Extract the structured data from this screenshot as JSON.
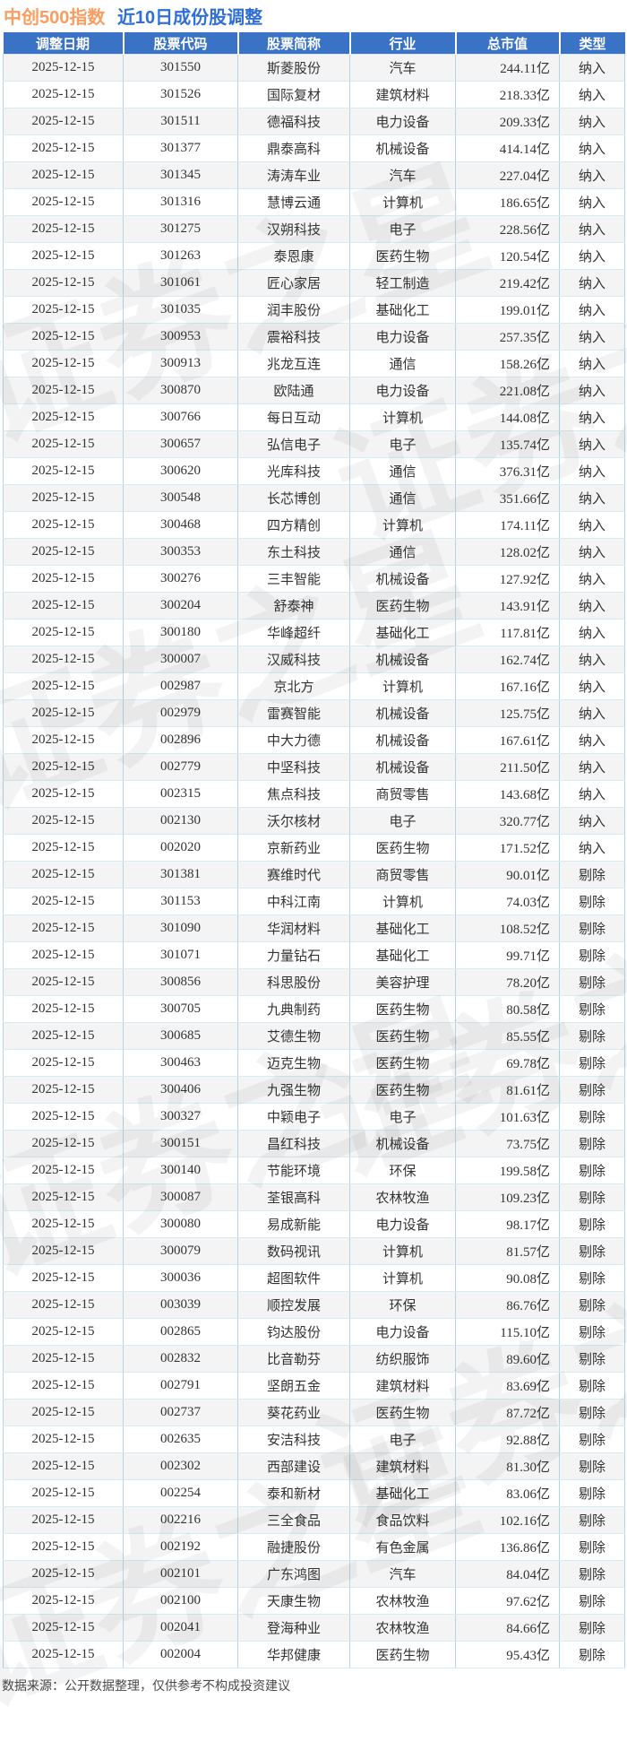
{
  "page": {
    "title_main": "中创500指数",
    "title_sub": "近10日成份股调整",
    "footer": "数据来源：公开数据整理，仅供参考不构成投资建议",
    "watermark": "证券之星"
  },
  "colors": {
    "title_main": "#f99d61",
    "title_sub": "#2f6fd6",
    "header_bg": "#3a72c6",
    "header_text": "#ffffff",
    "body_text": "#333333",
    "row_stripe": "#f4f4f4",
    "border_vertical": "#b0d4e8",
    "border_horizontal": "#d9eaf5",
    "footer_text": "#4a4a4a"
  },
  "table": {
    "columns": [
      "调整日期",
      "股票代码",
      "股票简称",
      "行业",
      "总市值",
      "类型"
    ],
    "rows": [
      [
        "2025-12-15",
        "301550",
        "斯菱股份",
        "汽车",
        "244.11亿",
        "纳入"
      ],
      [
        "2025-12-15",
        "301526",
        "国际复材",
        "建筑材料",
        "218.33亿",
        "纳入"
      ],
      [
        "2025-12-15",
        "301511",
        "德福科技",
        "电力设备",
        "209.33亿",
        "纳入"
      ],
      [
        "2025-12-15",
        "301377",
        "鼎泰高科",
        "机械设备",
        "414.14亿",
        "纳入"
      ],
      [
        "2025-12-15",
        "301345",
        "涛涛车业",
        "汽车",
        "227.04亿",
        "纳入"
      ],
      [
        "2025-12-15",
        "301316",
        "慧博云通",
        "计算机",
        "186.65亿",
        "纳入"
      ],
      [
        "2025-12-15",
        "301275",
        "汉朔科技",
        "电子",
        "228.56亿",
        "纳入"
      ],
      [
        "2025-12-15",
        "301263",
        "泰恩康",
        "医药生物",
        "120.54亿",
        "纳入"
      ],
      [
        "2025-12-15",
        "301061",
        "匠心家居",
        "轻工制造",
        "219.42亿",
        "纳入"
      ],
      [
        "2025-12-15",
        "301035",
        "润丰股份",
        "基础化工",
        "199.01亿",
        "纳入"
      ],
      [
        "2025-12-15",
        "300953",
        "震裕科技",
        "电力设备",
        "257.35亿",
        "纳入"
      ],
      [
        "2025-12-15",
        "300913",
        "兆龙互连",
        "通信",
        "158.26亿",
        "纳入"
      ],
      [
        "2025-12-15",
        "300870",
        "欧陆通",
        "电力设备",
        "221.08亿",
        "纳入"
      ],
      [
        "2025-12-15",
        "300766",
        "每日互动",
        "计算机",
        "144.08亿",
        "纳入"
      ],
      [
        "2025-12-15",
        "300657",
        "弘信电子",
        "电子",
        "135.74亿",
        "纳入"
      ],
      [
        "2025-12-15",
        "300620",
        "光库科技",
        "通信",
        "376.31亿",
        "纳入"
      ],
      [
        "2025-12-15",
        "300548",
        "长芯博创",
        "通信",
        "351.66亿",
        "纳入"
      ],
      [
        "2025-12-15",
        "300468",
        "四方精创",
        "计算机",
        "174.11亿",
        "纳入"
      ],
      [
        "2025-12-15",
        "300353",
        "东土科技",
        "通信",
        "128.02亿",
        "纳入"
      ],
      [
        "2025-12-15",
        "300276",
        "三丰智能",
        "机械设备",
        "127.92亿",
        "纳入"
      ],
      [
        "2025-12-15",
        "300204",
        "舒泰神",
        "医药生物",
        "143.91亿",
        "纳入"
      ],
      [
        "2025-12-15",
        "300180",
        "华峰超纤",
        "基础化工",
        "117.81亿",
        "纳入"
      ],
      [
        "2025-12-15",
        "300007",
        "汉威科技",
        "机械设备",
        "162.74亿",
        "纳入"
      ],
      [
        "2025-12-15",
        "002987",
        "京北方",
        "计算机",
        "167.16亿",
        "纳入"
      ],
      [
        "2025-12-15",
        "002979",
        "雷赛智能",
        "机械设备",
        "125.75亿",
        "纳入"
      ],
      [
        "2025-12-15",
        "002896",
        "中大力德",
        "机械设备",
        "167.61亿",
        "纳入"
      ],
      [
        "2025-12-15",
        "002779",
        "中坚科技",
        "机械设备",
        "211.50亿",
        "纳入"
      ],
      [
        "2025-12-15",
        "002315",
        "焦点科技",
        "商贸零售",
        "143.68亿",
        "纳入"
      ],
      [
        "2025-12-15",
        "002130",
        "沃尔核材",
        "电子",
        "320.77亿",
        "纳入"
      ],
      [
        "2025-12-15",
        "002020",
        "京新药业",
        "医药生物",
        "171.52亿",
        "纳入"
      ],
      [
        "2025-12-15",
        "301381",
        "赛维时代",
        "商贸零售",
        "90.01亿",
        "剔除"
      ],
      [
        "2025-12-15",
        "301153",
        "中科江南",
        "计算机",
        "74.03亿",
        "剔除"
      ],
      [
        "2025-12-15",
        "301090",
        "华润材料",
        "基础化工",
        "108.52亿",
        "剔除"
      ],
      [
        "2025-12-15",
        "301071",
        "力量钻石",
        "基础化工",
        "99.71亿",
        "剔除"
      ],
      [
        "2025-12-15",
        "300856",
        "科思股份",
        "美容护理",
        "78.20亿",
        "剔除"
      ],
      [
        "2025-12-15",
        "300705",
        "九典制药",
        "医药生物",
        "80.58亿",
        "剔除"
      ],
      [
        "2025-12-15",
        "300685",
        "艾德生物",
        "医药生物",
        "85.55亿",
        "剔除"
      ],
      [
        "2025-12-15",
        "300463",
        "迈克生物",
        "医药生物",
        "69.78亿",
        "剔除"
      ],
      [
        "2025-12-15",
        "300406",
        "九强生物",
        "医药生物",
        "81.61亿",
        "剔除"
      ],
      [
        "2025-12-15",
        "300327",
        "中颖电子",
        "电子",
        "101.63亿",
        "剔除"
      ],
      [
        "2025-12-15",
        "300151",
        "昌红科技",
        "机械设备",
        "73.75亿",
        "剔除"
      ],
      [
        "2025-12-15",
        "300140",
        "节能环境",
        "环保",
        "199.58亿",
        "剔除"
      ],
      [
        "2025-12-15",
        "300087",
        "荃银高科",
        "农林牧渔",
        "109.23亿",
        "剔除"
      ],
      [
        "2025-12-15",
        "300080",
        "易成新能",
        "电力设备",
        "98.17亿",
        "剔除"
      ],
      [
        "2025-12-15",
        "300079",
        "数码视讯",
        "计算机",
        "81.57亿",
        "剔除"
      ],
      [
        "2025-12-15",
        "300036",
        "超图软件",
        "计算机",
        "90.08亿",
        "剔除"
      ],
      [
        "2025-12-15",
        "003039",
        "顺控发展",
        "环保",
        "86.76亿",
        "剔除"
      ],
      [
        "2025-12-15",
        "002865",
        "钧达股份",
        "电力设备",
        "115.10亿",
        "剔除"
      ],
      [
        "2025-12-15",
        "002832",
        "比音勒芬",
        "纺织服饰",
        "89.60亿",
        "剔除"
      ],
      [
        "2025-12-15",
        "002791",
        "坚朗五金",
        "建筑材料",
        "83.69亿",
        "剔除"
      ],
      [
        "2025-12-15",
        "002737",
        "葵花药业",
        "医药生物",
        "87.72亿",
        "剔除"
      ],
      [
        "2025-12-15",
        "002635",
        "安洁科技",
        "电子",
        "92.88亿",
        "剔除"
      ],
      [
        "2025-12-15",
        "002302",
        "西部建设",
        "建筑材料",
        "81.30亿",
        "剔除"
      ],
      [
        "2025-12-15",
        "002254",
        "泰和新材",
        "基础化工",
        "83.06亿",
        "剔除"
      ],
      [
        "2025-12-15",
        "002216",
        "三全食品",
        "食品饮料",
        "102.16亿",
        "剔除"
      ],
      [
        "2025-12-15",
        "002192",
        "融捷股份",
        "有色金属",
        "136.86亿",
        "剔除"
      ],
      [
        "2025-12-15",
        "002101",
        "广东鸿图",
        "汽车",
        "84.04亿",
        "剔除"
      ],
      [
        "2025-12-15",
        "002100",
        "天康生物",
        "农林牧渔",
        "97.62亿",
        "剔除"
      ],
      [
        "2025-12-15",
        "002041",
        "登海种业",
        "农林牧渔",
        "84.66亿",
        "剔除"
      ],
      [
        "2025-12-15",
        "002004",
        "华邦健康",
        "医药生物",
        "95.43亿",
        "剔除"
      ]
    ]
  }
}
